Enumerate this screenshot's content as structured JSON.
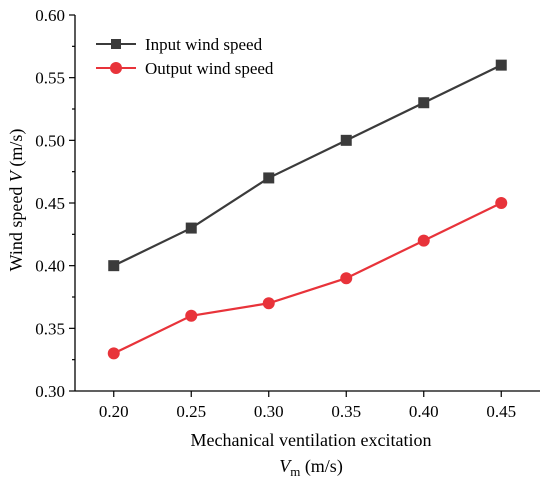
{
  "chart_data": {
    "type": "line",
    "x": [
      0.2,
      0.25,
      0.3,
      0.35,
      0.4,
      0.45
    ],
    "x_tick_labels": [
      "0.20",
      "0.25",
      "0.30",
      "0.35",
      "0.40",
      "0.45"
    ],
    "y_tick_labels": [
      "0.30",
      "0.35",
      "0.40",
      "0.45",
      "0.50",
      "0.55",
      "0.60"
    ],
    "y_ticks": [
      0.3,
      0.35,
      0.4,
      0.45,
      0.5,
      0.55,
      0.6
    ],
    "ylim": [
      0.3,
      0.6
    ],
    "xlim": [
      0.175,
      0.475
    ],
    "xlabel_line1": "Mechanical ventilation excitation",
    "xlabel_symbol": "V",
    "xlabel_subscript": "m",
    "xlabel_unit": " (m/s)",
    "ylabel_prefix": "Wind speed ",
    "ylabel_symbol": "V",
    "ylabel_unit": " (m/s)",
    "legend_position": "top-left",
    "grid": false,
    "series": [
      {
        "name": "Input wind speed",
        "color": "#3b3b3b",
        "marker": "square",
        "values": [
          0.4,
          0.43,
          0.47,
          0.5,
          0.53,
          0.56
        ]
      },
      {
        "name": "Output wind speed",
        "color": "#e8333a",
        "marker": "circle",
        "values": [
          0.33,
          0.36,
          0.37,
          0.39,
          0.42,
          0.45
        ]
      }
    ]
  }
}
